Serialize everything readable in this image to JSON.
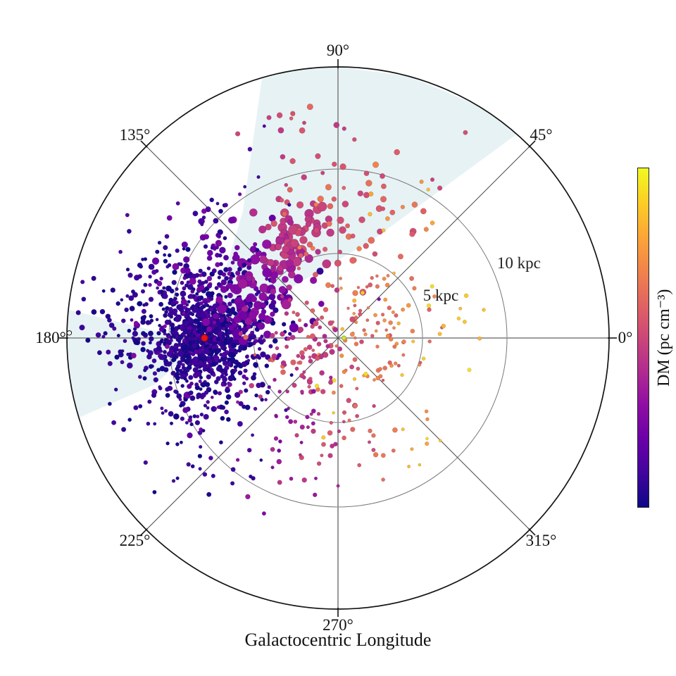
{
  "figure": {
    "xlabel": "Galactocentric Longitude",
    "angle_labels": [
      {
        "deg": 0,
        "label": "0°"
      },
      {
        "deg": 45,
        "label": "45°"
      },
      {
        "deg": 90,
        "label": "90°"
      },
      {
        "deg": 135,
        "label": "135°"
      },
      {
        "deg": 180,
        "label": "180°"
      },
      {
        "deg": 225,
        "label": "225°"
      },
      {
        "deg": 270,
        "label": "270°"
      },
      {
        "deg": 315,
        "label": "315°"
      }
    ],
    "radius_labels": [
      {
        "kpc": 5,
        "label": "5 kpc"
      },
      {
        "kpc": 10,
        "label": "10 kpc"
      }
    ],
    "colorbar": {
      "label": "DM (pc cm⁻³)",
      "colormap": "plasma",
      "stops": [
        {
          "t": 0.0,
          "c": "#0d0887"
        },
        {
          "t": 0.1,
          "c": "#41049d"
        },
        {
          "t": 0.2,
          "c": "#6a00a8"
        },
        {
          "t": 0.3,
          "c": "#8f0da4"
        },
        {
          "t": 0.4,
          "c": "#b12a90"
        },
        {
          "t": 0.5,
          "c": "#cc4778"
        },
        {
          "t": 0.6,
          "c": "#e16462"
        },
        {
          "t": 0.7,
          "c": "#f2844b"
        },
        {
          "t": 0.8,
          "c": "#fca636"
        },
        {
          "t": 0.9,
          "c": "#fcce25"
        },
        {
          "t": 1.0,
          "c": "#f0f921"
        }
      ]
    },
    "grid": {
      "outer_circle_color": "#141414",
      "inner_circle_color": "#787878",
      "cardinal_spoke_color": "#8f8f8f",
      "diagonal_spoke_color": "#4a4a4a",
      "shade_color": "#d8eaef"
    }
  },
  "chart_data": {
    "type": "scatter",
    "projection": "polar",
    "angle_unit": "degrees (galactocentric longitude)",
    "radial_unit": "kpc",
    "radial_gridlines_kpc": [
      5,
      10
    ],
    "outer_radius_kpc": 16,
    "color_variable": "DM (pc cm⁻³)",
    "colormap": "plasma",
    "seed": 1337,
    "markers": [
      {
        "name": "red-dot",
        "x_kpc": -7.9,
        "y_kpc": 0.0,
        "radius_px": 4.6,
        "fill": "#ee1212",
        "stroke": "#b00808"
      },
      {
        "name": "open-circle",
        "x_kpc": -15.9,
        "y_kpc": 0.3,
        "radius_px": 3.2,
        "fill": "#ffffff",
        "stroke": "#111111"
      },
      {
        "name": "center-dot",
        "x_kpc": 0.35,
        "y_kpc": 0.0,
        "radius_px": 3.0,
        "fill": "#cfe04a",
        "stroke": "#9aa82a"
      }
    ],
    "shaded_regions": [
      {
        "name": "top-sector",
        "polygon_kpc": [
          [
            -7.88,
            -0.04
          ],
          [
            -5.63,
            7.5
          ],
          [
            -4.5,
            15.33
          ],
          [
            -2.79,
            15.79
          ],
          [
            0,
            16.04
          ],
          [
            4.17,
            15.5
          ],
          [
            8.0,
            13.88
          ],
          [
            11.17,
            12.5
          ],
          [
            2.21,
            5.92
          ]
        ]
      },
      {
        "name": "anticenter-sector",
        "polygon_kpc": [
          [
            -7.88,
            -0.04
          ],
          [
            -10.42,
            0.33
          ],
          [
            -15.96,
            1.67
          ],
          [
            -16.04,
            0.0
          ],
          [
            -15.79,
            -2.79
          ],
          [
            -15.33,
            -4.71
          ],
          [
            -10.83,
            -2.75
          ]
        ]
      }
    ],
    "clusters": [
      {
        "name": "sun-core",
        "x": -7.9,
        "y": 0.1,
        "sx": 0.9,
        "sy": 0.9,
        "n": 450,
        "s": [
          2.2,
          3.6
        ],
        "t": [
          0.0,
          0.1
        ]
      },
      {
        "name": "sun-halo",
        "x": -7.5,
        "y": -0.4,
        "sx": 2.0,
        "sy": 2.0,
        "n": 500,
        "s": [
          2.2,
          4.2
        ],
        "t": [
          0.0,
          0.18
        ]
      },
      {
        "name": "west-spread",
        "x": -10.0,
        "y": 0.3,
        "sx": 2.4,
        "sy": 2.2,
        "n": 230,
        "s": [
          2.2,
          4.0
        ],
        "t": [
          0.0,
          0.12
        ]
      },
      {
        "name": "upper-left",
        "x": -6.8,
        "y": 3.0,
        "sx": 2.4,
        "sy": 2.0,
        "n": 170,
        "s": [
          2.4,
          5.0
        ],
        "t": [
          0.04,
          0.28
        ]
      },
      {
        "name": "arm-chain",
        "type": "line",
        "x1": -5.8,
        "y1": 1.2,
        "x2": -1.8,
        "y2": 7.2,
        "jitter": 1.0,
        "n": 140,
        "s": [
          4.0,
          7.0
        ],
        "t": [
          0.22,
          0.52
        ]
      },
      {
        "name": "top-pink",
        "x": 1.0,
        "y": 6.8,
        "sx": 2.6,
        "sy": 1.7,
        "n": 55,
        "s": [
          3.0,
          5.0
        ],
        "t": [
          0.5,
          0.7
        ]
      },
      {
        "name": "top-far",
        "x": -1.5,
        "y": 11.2,
        "sx": 2.8,
        "sy": 1.8,
        "n": 26,
        "s": [
          2.6,
          4.4
        ],
        "t": [
          0.45,
          0.62
        ]
      },
      {
        "name": "inner-right",
        "x": 2.0,
        "y": 0.3,
        "sx": 1.8,
        "sy": 1.8,
        "n": 85,
        "s": [
          2.0,
          3.2
        ],
        "t": [
          0.55,
          0.78
        ]
      },
      {
        "name": "center-left-mix",
        "x": -2.0,
        "y": -0.8,
        "sx": 1.6,
        "sy": 1.6,
        "n": 80,
        "s": [
          2.2,
          4.0
        ],
        "t": [
          0.4,
          0.62
        ]
      },
      {
        "name": "bottom-spread",
        "x": -1.8,
        "y": -5.2,
        "sx": 2.8,
        "sy": 2.2,
        "n": 85,
        "s": [
          2.2,
          3.6
        ],
        "t": [
          0.3,
          0.55
        ],
        "t_xgrad": 0.045
      },
      {
        "name": "yellow-sparse",
        "x": 2.5,
        "y": -1.0,
        "sx": 3.0,
        "sy": 3.0,
        "n": 20,
        "s": [
          2.0,
          3.2
        ],
        "t": [
          0.82,
          0.95
        ]
      },
      {
        "name": "right-outer-yellow",
        "x": 5.0,
        "y": 1.5,
        "sx": 2.0,
        "sy": 2.5,
        "n": 8,
        "s": [
          2.0,
          3.0
        ],
        "t": [
          0.8,
          0.95
        ]
      },
      {
        "name": "upper-right-orange",
        "x": 3.5,
        "y": 7.5,
        "sx": 2.0,
        "sy": 1.5,
        "n": 8,
        "s": [
          2.2,
          3.4
        ],
        "t": [
          0.7,
          0.88
        ]
      },
      {
        "name": "lower-left-sparse",
        "x": -8.5,
        "y": -5.5,
        "sx": 2.5,
        "sy": 2.0,
        "n": 45,
        "s": [
          2.2,
          3.4
        ],
        "t": [
          0.0,
          0.12
        ]
      },
      {
        "name": "upper-left-far",
        "x": -8.0,
        "y": 6.0,
        "sx": 2.5,
        "sy": 2.2,
        "n": 35,
        "s": [
          2.2,
          3.4
        ],
        "t": [
          0.02,
          0.15
        ]
      },
      {
        "name": "bottom-right-yellow",
        "x": 4.5,
        "y": -6.5,
        "sx": 1.2,
        "sy": 0.8,
        "n": 4,
        "s": [
          2.0,
          2.8
        ],
        "t": [
          0.78,
          0.9
        ]
      }
    ]
  }
}
